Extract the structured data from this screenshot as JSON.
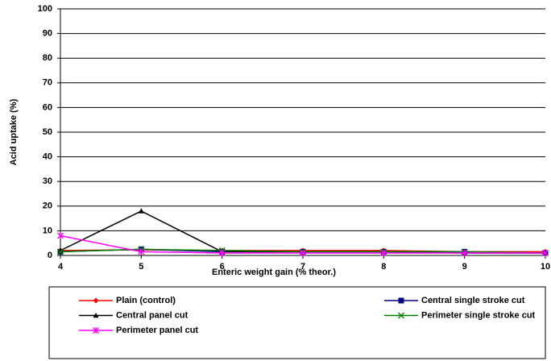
{
  "chart_data": {
    "type": "line",
    "x_label": "Enteric weight gain (% theor.)",
    "y_label": "Acid uptake (%)",
    "x": [
      4,
      5,
      6,
      7,
      8,
      9,
      10
    ],
    "xlim": [
      4,
      10
    ],
    "xticks": [
      4,
      5,
      6,
      7,
      8,
      9,
      10
    ],
    "ylim": [
      0,
      100
    ],
    "yticks": [
      0,
      10,
      20,
      30,
      40,
      50,
      60,
      70,
      80,
      90,
      100
    ],
    "grid": true,
    "legend": "bottom",
    "series": [
      {
        "name": "Plain (control)",
        "color": "#ff0000",
        "marker": "diamond",
        "values": [
          2,
          2.3,
          2,
          2,
          2,
          1.5,
          1.5
        ]
      },
      {
        "name": "Central single stroke cut",
        "color": "#000080",
        "marker": "square",
        "values": [
          1.5,
          2.5,
          1.5,
          1.5,
          1.5,
          1.5,
          1
        ]
      },
      {
        "name": "Central panel cut",
        "color": "#000000",
        "marker": "triangle",
        "values": [
          2,
          18,
          1.5,
          1.5,
          1.5,
          1,
          1
        ]
      },
      {
        "name": "Perimeter single stroke cut",
        "color": "#008000",
        "marker": "x",
        "values": [
          1.5,
          2.5,
          2,
          1.5,
          1.5,
          1.5,
          1
        ]
      },
      {
        "name": "Perimeter panel cut",
        "color": "#ff00ff",
        "marker": "asterisk",
        "values": [
          8,
          1.5,
          1,
          1,
          1,
          1,
          1
        ]
      }
    ]
  }
}
